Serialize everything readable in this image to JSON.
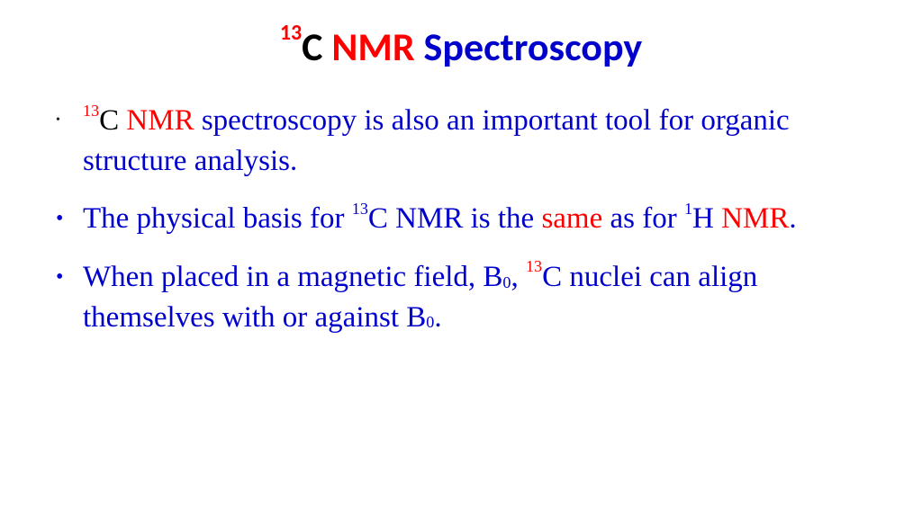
{
  "colors": {
    "blue": "#0000cc",
    "red": "#ff0000",
    "black": "#000000",
    "bulletBlack": "#1e1e1e",
    "bulletBlue": "#0000cc"
  },
  "title": {
    "sup": "13",
    "t1": "C ",
    "t2": "NMR",
    "t3": " Spectroscopy"
  },
  "bullets": [
    {
      "smallBullet": true,
      "bulletColor": "bulletBlack",
      "segments": [
        {
          "text": "13",
          "role": "sup",
          "color": "red"
        },
        {
          "text": "C ",
          "color": "black"
        },
        {
          "text": "NMR",
          "color": "red"
        },
        {
          "text": " spectroscopy is also an important tool for organic structure analysis.",
          "color": "blue"
        }
      ]
    },
    {
      "smallBullet": false,
      "bulletColor": "bulletBlue",
      "segments": [
        {
          "text": "The physical basis for ",
          "color": "blue"
        },
        {
          "text": "13",
          "role": "sup",
          "color": "blue"
        },
        {
          "text": "C NMR is the ",
          "color": "blue"
        },
        {
          "text": "same",
          "color": "red"
        },
        {
          "text": " as for ",
          "color": "blue"
        },
        {
          "text": "1",
          "role": "sup",
          "color": "blue"
        },
        {
          "text": "H ",
          "color": "blue"
        },
        {
          "text": "NMR",
          "color": "red"
        },
        {
          "text": ".",
          "color": "blue"
        }
      ]
    },
    {
      "smallBullet": false,
      "bulletColor": "bulletBlue",
      "segments": [
        {
          "text": "When placed in a magnetic field, B",
          "color": "blue"
        },
        {
          "text": "0",
          "role": "sub",
          "color": "blue"
        },
        {
          "text": ", ",
          "color": "blue"
        },
        {
          "text": "13",
          "role": "sup",
          "color": "red"
        },
        {
          "text": "C nuclei can align themselves with or against B",
          "color": "blue"
        },
        {
          "text": "0",
          "role": "sub",
          "color": "blue"
        },
        {
          "text": ".",
          "color": "blue"
        }
      ]
    }
  ]
}
